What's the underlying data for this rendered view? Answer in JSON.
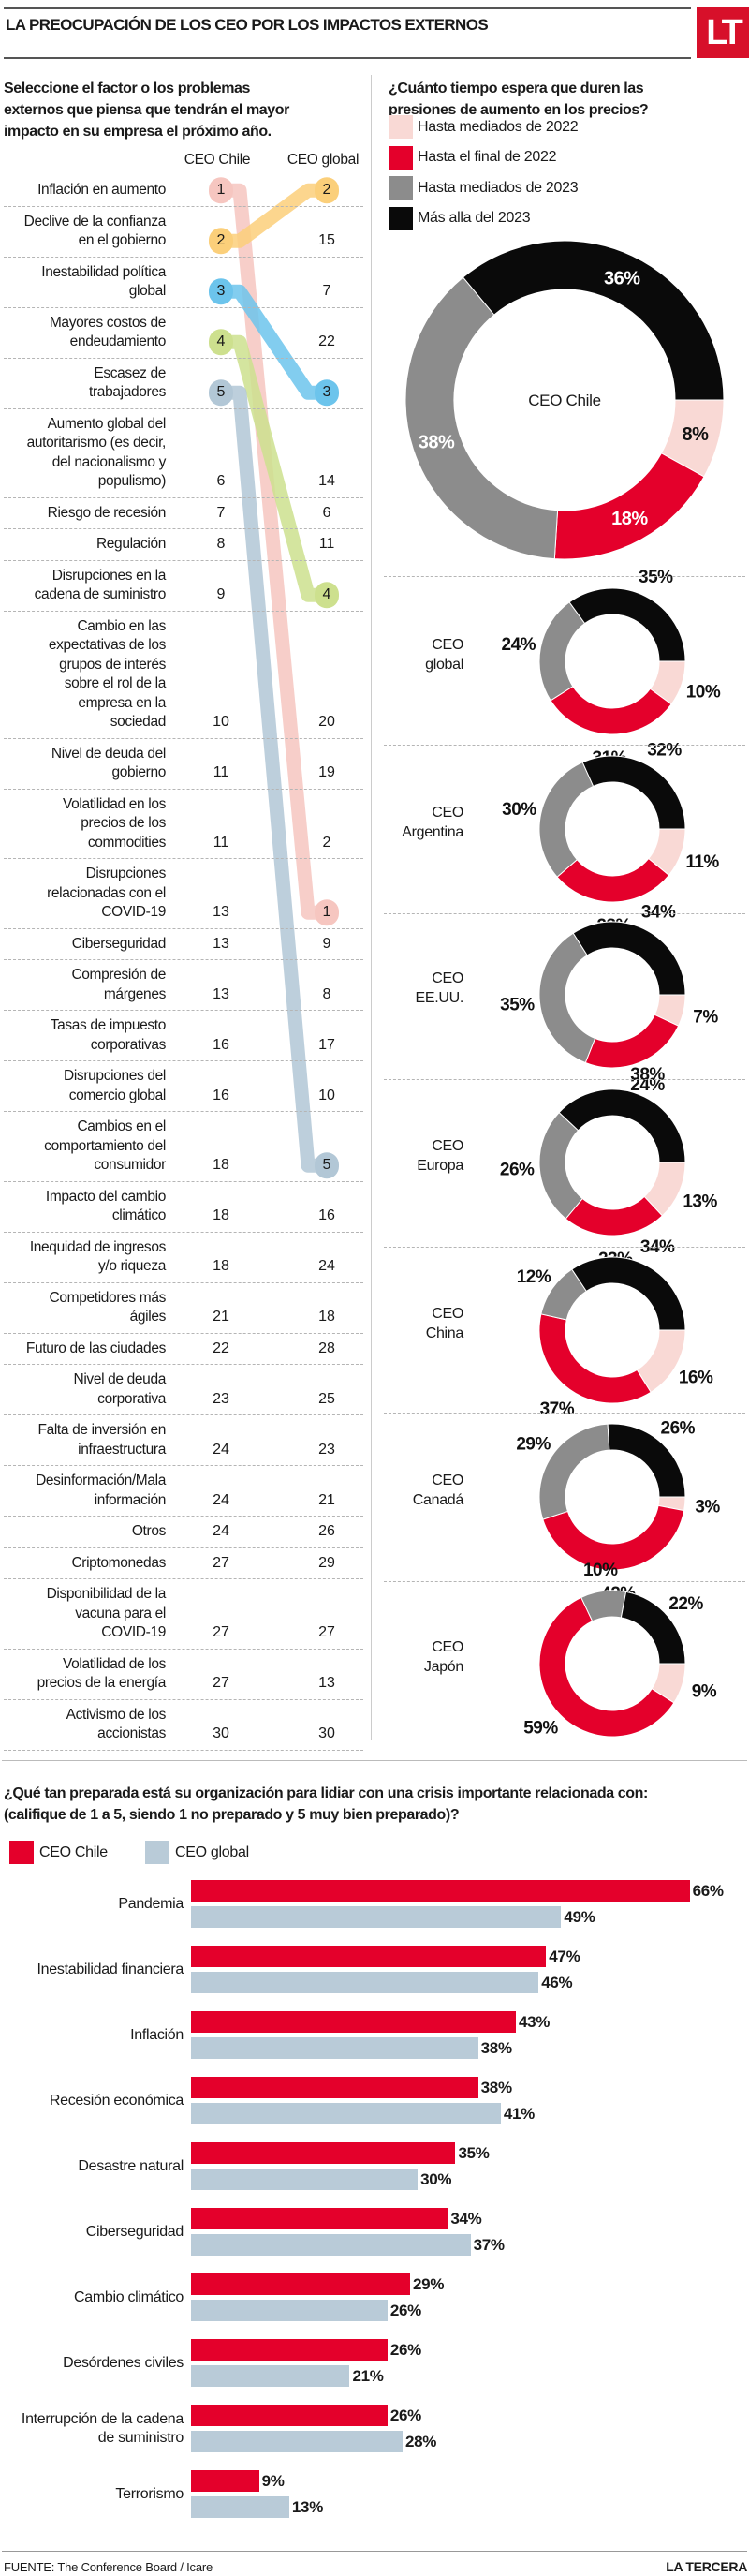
{
  "header": {
    "title": "LA PREOCUPACIÓN DE LOS CEO POR LOS IMPACTOS EXTERNOS",
    "logo": "LT"
  },
  "colors": {
    "brand_red": "#d7102a",
    "pink": "#f9d9d5",
    "red": "#e4002b",
    "gray": "#8c8c8c",
    "black": "#0a0a0a",
    "light_blue": "#b9cbd8"
  },
  "chart_data": [
    {
      "type": "table",
      "title": "Seleccione el factor o los problemas\nexternos que piensa que tendrán el mayor\nimpacto en su empresa el próximo año.",
      "columns": [
        "CEO Chile",
        "CEO global"
      ],
      "highlight_colors": [
        "#f6c6c0",
        "#fbcf7a",
        "#6cc4ec",
        "#cde08e",
        "#b2c7d6"
      ],
      "rows": [
        {
          "label": "Inflación en aumento",
          "chile": 1,
          "global": 2
        },
        {
          "label": "Declive de la confianza\nen el gobierno",
          "chile": 2,
          "global": 15
        },
        {
          "label": "Inestabilidad política\nglobal",
          "chile": 3,
          "global": 7
        },
        {
          "label": "Mayores costos de\nendeudamiento",
          "chile": 4,
          "global": 22
        },
        {
          "label": "Escasez de\ntrabajadores",
          "chile": 5,
          "global": 3
        },
        {
          "label": "Aumento global del\nautoritarismo (es decir,\ndel nacionalismo y\npopulismo)",
          "chile": 6,
          "global": 14
        },
        {
          "label": "Riesgo de recesión",
          "chile": 7,
          "global": 6
        },
        {
          "label": "Regulación",
          "chile": 8,
          "global": 11
        },
        {
          "label": "Disrupciones en la\ncadena de suministro",
          "chile": 9,
          "global": 4
        },
        {
          "label": "Cambio en las\nexpectativas de los\ngrupos de interés\nsobre el rol de la\nempresa en la\nsociedad",
          "chile": 10,
          "global": 20
        },
        {
          "label": "Nivel de deuda del\ngobierno",
          "chile": 11,
          "global": 19
        },
        {
          "label": "Volatilidad en los\nprecios de los\ncommodities",
          "chile": 11,
          "global": 2
        },
        {
          "label": "Disrupciones\nrelacionadas con el\nCOVID-19",
          "chile": 13,
          "global": 1
        },
        {
          "label": "Ciberseguridad",
          "chile": 13,
          "global": 9
        },
        {
          "label": "Compresión de\nmárgenes",
          "chile": 13,
          "global": 8
        },
        {
          "label": "Tasas de impuesto\ncorporativas",
          "chile": 16,
          "global": 17
        },
        {
          "label": "Disrupciones del\ncomercio global",
          "chile": 16,
          "global": 10
        },
        {
          "label": "Cambios en el\ncomportamiento del\nconsumidor",
          "chile": 18,
          "global": 5
        },
        {
          "label": "Impacto del cambio\nclimático",
          "chile": 18,
          "global": 16
        },
        {
          "label": "Inequidad de ingresos\ny/o riqueza",
          "chile": 18,
          "global": 24
        },
        {
          "label": "Competidores más\nágiles",
          "chile": 21,
          "global": 18
        },
        {
          "label": "Futuro de las ciudades",
          "chile": 22,
          "global": 28
        },
        {
          "label": "Nivel de deuda\ncorporativa",
          "chile": 23,
          "global": 25
        },
        {
          "label": "Falta de inversión en\ninfraestructura",
          "chile": 24,
          "global": 23
        },
        {
          "label": "Desinformación/Mala\ninformación",
          "chile": 24,
          "global": 21
        },
        {
          "label": "Otros",
          "chile": 24,
          "global": 26
        },
        {
          "label": "Criptomonedas",
          "chile": 27,
          "global": 29
        },
        {
          "label": "Disponibilidad de la\nvacuna para el\nCOVID-19",
          "chile": 27,
          "global": 27
        },
        {
          "label": "Volatilidad de los\nprecios de la energía",
          "chile": 27,
          "global": 13
        },
        {
          "label": "Activismo de los\naccionistas",
          "chile": 30,
          "global": 30
        }
      ]
    },
    {
      "type": "pie",
      "title": "¿Cuánto tiempo espera que duren las\npresiones de aumento en los precios?",
      "legend": [
        "Hasta mediados de 2022",
        "Hasta el final de 2022",
        "Hasta mediados de 2023",
        "Más alla del 2023"
      ],
      "legend_colors": [
        "#f9d9d5",
        "#e4002b",
        "#8c8c8c",
        "#0a0a0a"
      ],
      "donuts": [
        {
          "name": "CEO Chile",
          "values": [
            8,
            18,
            38,
            36
          ]
        },
        {
          "name": "CEO\nglobal",
          "values": [
            10,
            31,
            24,
            35
          ]
        },
        {
          "name": "CEO\nArgentina",
          "values": [
            11,
            28,
            30,
            32
          ]
        },
        {
          "name": "CEO\nEE.UU.",
          "values": [
            7,
            24,
            35,
            34
          ]
        },
        {
          "name": "CEO\nEuropa",
          "values": [
            13,
            23,
            26,
            38
          ]
        },
        {
          "name": "CEO\nChina",
          "values": [
            16,
            37,
            12,
            34
          ]
        },
        {
          "name": "CEO\nCanadá",
          "values": [
            3,
            42,
            29,
            26
          ]
        },
        {
          "name": "CEO\nJapón",
          "values": [
            9,
            59,
            10,
            22
          ]
        }
      ]
    },
    {
      "type": "bar",
      "orientation": "horizontal",
      "title": "¿Qué tan preparada está su organización para lidiar con una crisis importante relacionada con:\n(califique de 1 a 5, siendo 1 no preparado y 5 muy bien preparado)?",
      "categories": [
        "Pandemia",
        "Inestabilidad financiera",
        "Inflación",
        "Recesión económica",
        "Desastre natural",
        "Ciberseguridad",
        "Cambio climático",
        "Desórdenes civiles",
        "Interrupción de la cadena\nde suministro",
        "Terrorismo"
      ],
      "series": [
        {
          "name": "CEO Chile",
          "color": "#e4002b",
          "values": [
            66,
            47,
            43,
            38,
            35,
            34,
            29,
            26,
            26,
            9
          ]
        },
        {
          "name": "CEO global",
          "color": "#b9cbd8",
          "values": [
            49,
            46,
            38,
            41,
            30,
            37,
            26,
            21,
            28,
            13
          ]
        }
      ],
      "unit": "%",
      "xlim": [
        0,
        66
      ]
    }
  ],
  "footer": {
    "source": "FUENTE: The Conference Board / Icare",
    "brand": "LA TERCERA"
  }
}
